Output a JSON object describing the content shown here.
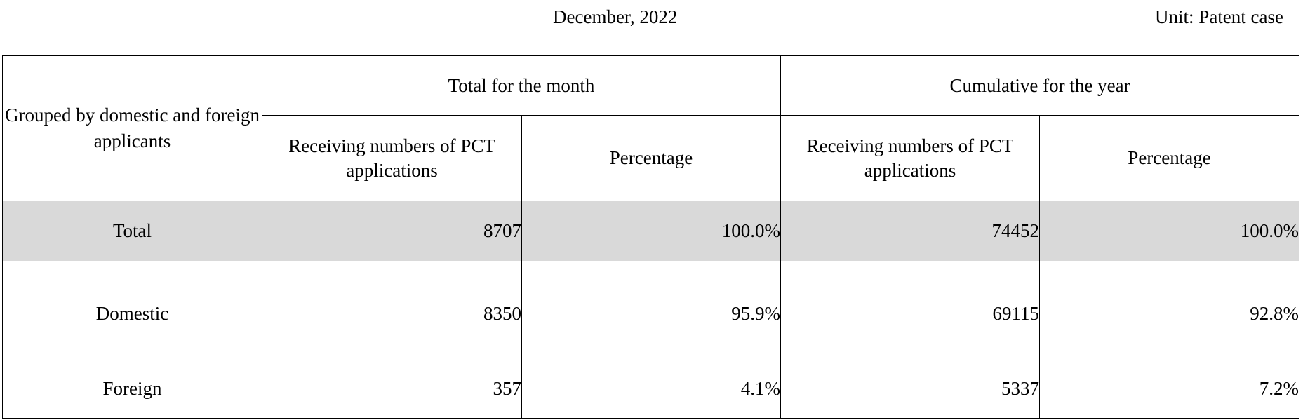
{
  "header": {
    "date": "December, 2022",
    "unit": "Unit: Patent case"
  },
  "table": {
    "row_header": "Grouped by domestic and foreign applicants",
    "groups": [
      "Total for the month",
      "Cumulative for the year"
    ],
    "subcolumns": {
      "count": "Receiving numbers of PCT applications",
      "percentage": "Percentage"
    },
    "rows": [
      {
        "label": "Total",
        "month_count": "8707",
        "month_pct": "100.0%",
        "year_count": "74452",
        "year_pct": "100.0%"
      },
      {
        "label": "Domestic",
        "month_count": "8350",
        "month_pct": "95.9%",
        "year_count": "69115",
        "year_pct": "92.8%"
      },
      {
        "label": "Foreign",
        "month_count": "357",
        "month_pct": "4.1%",
        "year_count": "5337",
        "year_pct": "7.2%"
      }
    ]
  },
  "colors": {
    "total_row_background": "#d9d9d9",
    "border": "#000000"
  }
}
